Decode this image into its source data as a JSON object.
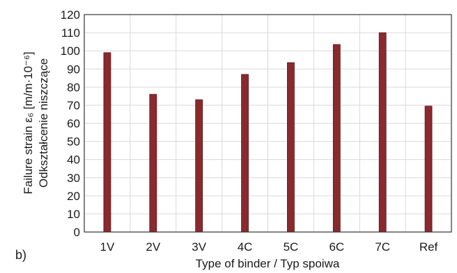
{
  "chart_data": {
    "type": "bar",
    "panel_label": "b)",
    "xlabel": "Type of binder / Typ spoiwa",
    "ylabel_line1": "Failure strain ε₆ [m/m·10⁻⁶]",
    "ylabel_line2": "Odkształcenie niszczące",
    "categories": [
      "1V",
      "2V",
      "3V",
      "4C",
      "5C",
      "6C",
      "7C",
      "Ref"
    ],
    "values": [
      99,
      76,
      73,
      87,
      93.5,
      103.5,
      110,
      69.5
    ],
    "ylim": [
      0,
      120
    ],
    "yticks": [
      "0",
      "10",
      "20",
      "30",
      "40",
      "50",
      "60",
      "70",
      "80",
      "90",
      "100",
      "110",
      "120"
    ],
    "grid": true,
    "bar_color": "#8b2a2e"
  }
}
